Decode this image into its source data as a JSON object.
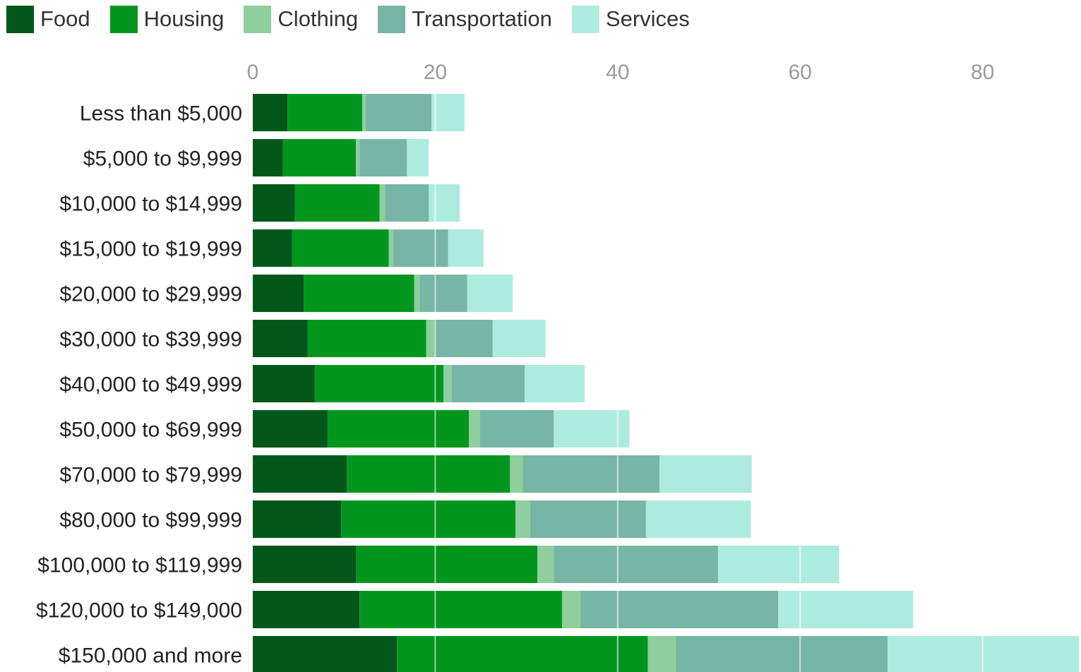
{
  "chart_data": {
    "type": "bar",
    "orientation": "horizontal",
    "stacked": true,
    "title": "",
    "xlabel": "",
    "ylabel": "",
    "xlim": [
      0,
      90
    ],
    "x_ticks": [
      0,
      20,
      40,
      60,
      80
    ],
    "grid": true,
    "legend_position": "top-left",
    "categories": [
      "Less than $5,000",
      "$5,000 to $9,999",
      "$10,000 to $14,999",
      "$15,000 to $19,999",
      "$20,000 to $29,999",
      "$30,000 to $39,999",
      "$40,000 to $49,999",
      "$50,000 to $69,999",
      "$70,000 to $79,999",
      "$80,000 to $99,999",
      "$100,000 to $119,999",
      "$120,000 to $149,000",
      "$150,000 and more"
    ],
    "series": [
      {
        "name": "Food",
        "color": "#02571a",
        "values": [
          3.8,
          3.3,
          4.6,
          4.3,
          5.6,
          6.0,
          6.8,
          8.2,
          10.3,
          9.7,
          11.3,
          11.7,
          15.8
        ]
      },
      {
        "name": "Housing",
        "color": "#02961f",
        "values": [
          8.2,
          8.0,
          9.3,
          10.6,
          12.1,
          13.0,
          14.1,
          15.5,
          17.9,
          19.1,
          19.9,
          22.2,
          27.5
        ]
      },
      {
        "name": "Clothing",
        "color": "#8fce9d",
        "values": [
          0.4,
          0.4,
          0.6,
          0.5,
          0.6,
          0.9,
          0.9,
          1.2,
          1.4,
          1.6,
          1.8,
          2.0,
          3.1
        ]
      },
      {
        "name": "Transportation",
        "color": "#77b5a6",
        "values": [
          7.2,
          5.2,
          4.8,
          6.0,
          5.2,
          6.4,
          8.0,
          8.1,
          15.0,
          12.7,
          18.0,
          21.7,
          23.2
        ]
      },
      {
        "name": "Services",
        "color": "#aeebdf",
        "values": [
          3.6,
          2.4,
          3.4,
          3.9,
          5.0,
          5.8,
          6.6,
          8.3,
          10.1,
          11.5,
          13.3,
          14.8,
          21.0
        ]
      }
    ]
  }
}
